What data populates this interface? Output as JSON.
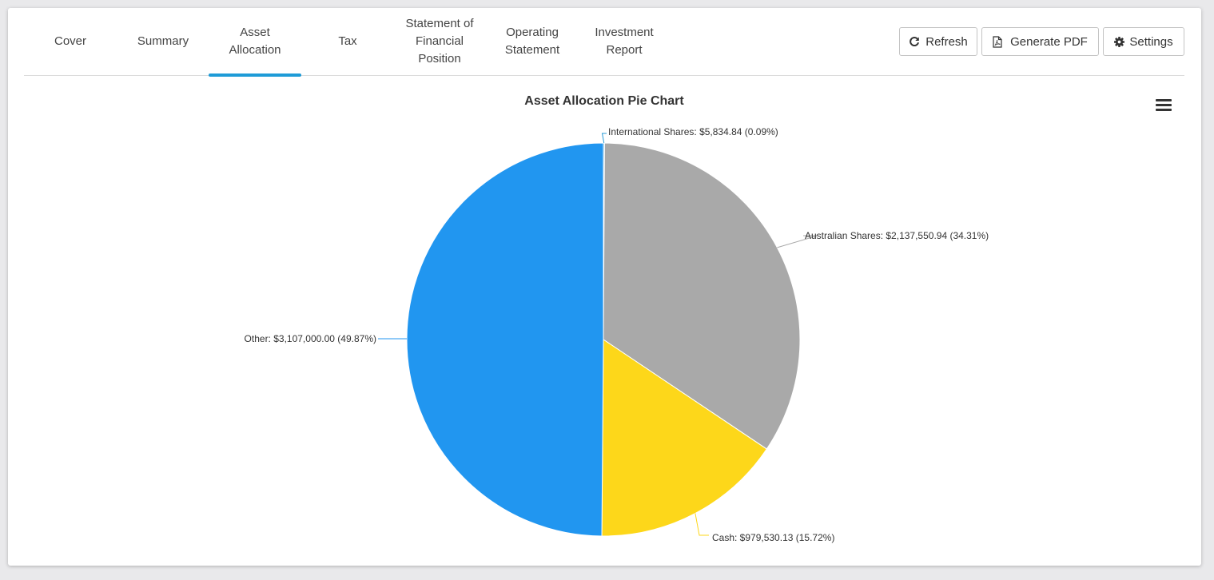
{
  "tabs": [
    {
      "label": "Cover",
      "active": false
    },
    {
      "label": "Summary",
      "active": false
    },
    {
      "label": "Asset Allocation",
      "active": true
    },
    {
      "label": "Tax",
      "active": false
    },
    {
      "label": "Statement of Financial Position",
      "active": false
    },
    {
      "label": "Operating Statement",
      "active": false
    },
    {
      "label": "Investment Report",
      "active": false
    }
  ],
  "toolbar": {
    "refresh_label": "Refresh",
    "generate_pdf_label": "Generate PDF",
    "settings_label": "Settings"
  },
  "colors": {
    "accent": "#1e9bd7"
  },
  "icons": {
    "refresh": "refresh-icon",
    "pdf": "pdf-file-icon",
    "settings": "gear-icon",
    "menu": "hamburger-menu-icon"
  },
  "chart_data": {
    "type": "pie",
    "title": "Asset Allocation Pie Chart",
    "slices": [
      {
        "name": "International Shares",
        "value": 5834.84,
        "percent": 0.09,
        "label": "International Shares: $5,834.84 (0.09%)",
        "color": "#2a9bd6"
      },
      {
        "name": "Australian Shares",
        "value": 2137550.94,
        "percent": 34.31,
        "label": "Australian Shares: $2,137,550.94 (34.31%)",
        "color": "#a9a9a9"
      },
      {
        "name": "Cash",
        "value": 979530.13,
        "percent": 15.72,
        "label": "Cash: $979,530.13 (15.72%)",
        "color": "#fdd71a"
      },
      {
        "name": "Other",
        "value": 3107000.0,
        "percent": 49.87,
        "label": "Other: $3,107,000.00 (49.87%)",
        "color": "#2196f0"
      }
    ],
    "start_angle_deg": 0,
    "legend": "none"
  }
}
